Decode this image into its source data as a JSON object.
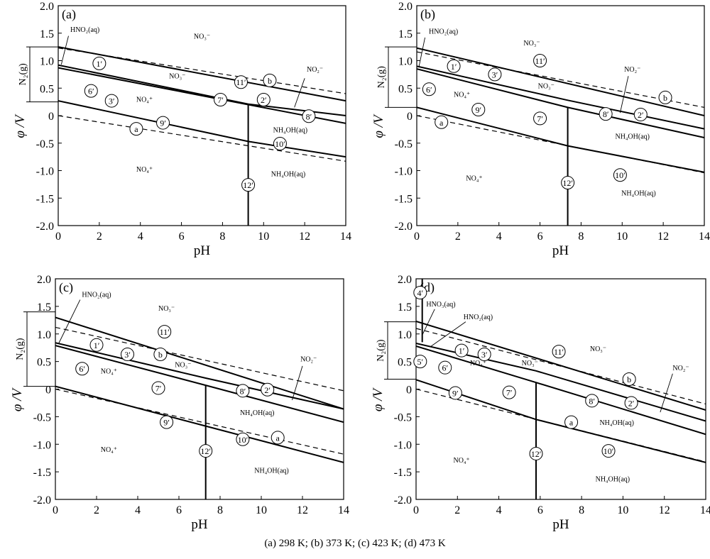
{
  "caption": "(a) 298 K; (b) 373 K; (c) 423 K; (d) 473 K",
  "chart_data": [
    {
      "type": "line",
      "panel_label": "(a)",
      "xlabel": "pH",
      "ylabel": "φ /V",
      "xlim": [
        0,
        14
      ],
      "ylim": [
        -2.0,
        2.0
      ],
      "xticks": [
        "0",
        "2",
        "4",
        "6",
        "8",
        "10",
        "12",
        "14"
      ],
      "yticks": [
        "2.0",
        "1.5",
        "1.0",
        "0.5",
        "0",
        "-0.5",
        "-1.0",
        "-1.5",
        "-2.0"
      ],
      "n2_label": "N₂(g)",
      "n2_bracket": [
        0.25,
        1.25
      ],
      "lines": [
        {
          "style": "dashed",
          "points": [
            [
              0,
              1.23
            ],
            [
              14,
              0.4
            ]
          ]
        },
        {
          "style": "dashed",
          "points": [
            [
              0,
              0.0
            ],
            [
              14,
              -0.83
            ]
          ]
        },
        {
          "style": "solid",
          "points": [
            [
              0,
              1.25
            ],
            [
              14,
              0.27
            ]
          ]
        },
        {
          "style": "solid",
          "points": [
            [
              0,
              0.92
            ],
            [
              9.25,
              0.21
            ],
            [
              14,
              0.0
            ]
          ]
        },
        {
          "style": "solid",
          "points": [
            [
              0,
              0.87
            ],
            [
              9.25,
              0.2
            ],
            [
              14,
              -0.14
            ]
          ]
        },
        {
          "style": "solid",
          "points": [
            [
              0,
              0.27
            ],
            [
              9.25,
              -0.47
            ],
            [
              14,
              -0.75
            ]
          ]
        },
        {
          "style": "solid",
          "points": [
            [
              9.25,
              0.21
            ],
            [
              9.25,
              -2.0
            ]
          ]
        }
      ],
      "markers": [
        {
          "id": "1′",
          "x": 2.0,
          "y": 0.95
        },
        {
          "id": "6′",
          "x": 1.6,
          "y": 0.45
        },
        {
          "id": "3′",
          "x": 2.6,
          "y": 0.27
        },
        {
          "id": "9′",
          "x": 5.1,
          "y": -0.13
        },
        {
          "id": "a",
          "x": 3.8,
          "y": -0.24
        },
        {
          "id": "7′",
          "x": 7.9,
          "y": 0.29
        },
        {
          "id": "11′",
          "x": 8.9,
          "y": 0.61
        },
        {
          "id": "b",
          "x": 10.3,
          "y": 0.64
        },
        {
          "id": "2′",
          "x": 10.0,
          "y": 0.29
        },
        {
          "id": "8′",
          "x": 12.2,
          "y": -0.01
        },
        {
          "id": "10′",
          "x": 10.8,
          "y": -0.51
        },
        {
          "id": "12′",
          "x": 9.25,
          "y": -1.26
        }
      ],
      "regions": [
        {
          "text": "HNO₂(aq)",
          "x": 1.3,
          "y": 1.52
        },
        {
          "text": "NO₃⁻",
          "x": 7.0,
          "y": 1.4
        },
        {
          "text": "NO₃⁻",
          "x": 5.8,
          "y": 0.68
        },
        {
          "text": "NO₂⁻",
          "x": 12.5,
          "y": 0.8
        },
        {
          "text": "NO₄⁺",
          "x": 4.2,
          "y": 0.25
        },
        {
          "text": "NH₄OH(aq)",
          "x": 11.3,
          "y": -0.3
        },
        {
          "text": "NO₄⁺",
          "x": 4.2,
          "y": -1.02
        },
        {
          "text": "NH₄OH(aq)",
          "x": 11.2,
          "y": -1.1
        }
      ],
      "pointers": [
        {
          "x1": 0.5,
          "y1": 1.45,
          "x2": 0.15,
          "y2": 0.93
        },
        {
          "x1": 12.0,
          "y1": 0.68,
          "x2": 11.5,
          "y2": 0.15
        }
      ]
    },
    {
      "type": "line",
      "panel_label": "(b)",
      "xlabel": "pH",
      "ylabel": "φ /V",
      "xlim": [
        0,
        14
      ],
      "ylim": [
        -2.0,
        2.0
      ],
      "xticks": [
        "0",
        "2",
        "4",
        "6",
        "8",
        "10",
        "12",
        "14"
      ],
      "yticks": [
        "2.0",
        "1.5",
        "1.0",
        "0.5",
        "0",
        "-0.5",
        "-1.0",
        "-1.5",
        "-2.0"
      ],
      "n2_label": "N₂(g)",
      "n2_bracket": [
        0.15,
        1.25
      ],
      "lines": [
        {
          "style": "dashed",
          "points": [
            [
              0,
              1.16
            ],
            [
              14,
              0.15
            ]
          ]
        },
        {
          "style": "dashed",
          "points": [
            [
              0,
              0.0
            ],
            [
              14,
              -1.04
            ]
          ]
        },
        {
          "style": "solid",
          "points": [
            [
              0,
              1.23
            ],
            [
              14,
              0.0
            ]
          ]
        },
        {
          "style": "solid",
          "points": [
            [
              0,
              0.9
            ],
            [
              7.35,
              0.28
            ],
            [
              14,
              -0.24
            ]
          ]
        },
        {
          "style": "solid",
          "points": [
            [
              0,
              0.85
            ],
            [
              7.35,
              0.15
            ],
            [
              14,
              -0.4
            ]
          ]
        },
        {
          "style": "solid",
          "points": [
            [
              0,
              0.15
            ],
            [
              7.35,
              -0.55
            ],
            [
              14,
              -1.03
            ]
          ]
        },
        {
          "style": "solid",
          "points": [
            [
              7.35,
              0.15
            ],
            [
              7.35,
              -2.0
            ]
          ]
        }
      ],
      "markers": [
        {
          "id": "1′",
          "x": 1.8,
          "y": 0.9
        },
        {
          "id": "3′",
          "x": 3.8,
          "y": 0.75
        },
        {
          "id": "6′",
          "x": 0.6,
          "y": 0.48
        },
        {
          "id": "11′",
          "x": 6.0,
          "y": 1.0
        },
        {
          "id": "9′",
          "x": 3.0,
          "y": 0.11
        },
        {
          "id": "a",
          "x": 1.2,
          "y": -0.12
        },
        {
          "id": "7′",
          "x": 6.0,
          "y": -0.05
        },
        {
          "id": "8′",
          "x": 9.2,
          "y": 0.03
        },
        {
          "id": "2′",
          "x": 10.9,
          "y": 0.02
        },
        {
          "id": "b",
          "x": 12.1,
          "y": 0.33
        },
        {
          "id": "10′",
          "x": 9.9,
          "y": -1.08
        },
        {
          "id": "12′",
          "x": 7.35,
          "y": -1.22
        }
      ],
      "regions": [
        {
          "text": "HNO₂(aq)",
          "x": 1.3,
          "y": 1.49
        },
        {
          "text": "NO₃⁻",
          "x": 5.6,
          "y": 1.28
        },
        {
          "text": "NO₂⁻",
          "x": 10.5,
          "y": 0.8
        },
        {
          "text": "NO₃⁻",
          "x": 6.3,
          "y": 0.5
        },
        {
          "text": "NO₄⁺",
          "x": 2.2,
          "y": 0.34
        },
        {
          "text": "NH₄OH(aq)",
          "x": 10.5,
          "y": -0.42
        },
        {
          "text": "NO₄⁺",
          "x": 2.8,
          "y": -1.18
        },
        {
          "text": "NH₄OH(aq)",
          "x": 10.8,
          "y": -1.45
        }
      ],
      "pointers": [
        {
          "x1": 0.4,
          "y1": 1.42,
          "x2": 0.1,
          "y2": 0.88
        },
        {
          "x1": 10.3,
          "y1": 0.72,
          "x2": 9.9,
          "y2": 0.05
        }
      ]
    },
    {
      "type": "line",
      "panel_label": "(c)",
      "xlabel": "pH",
      "ylabel": "φ /V",
      "xlim": [
        0,
        14
      ],
      "ylim": [
        -2.0,
        2.0
      ],
      "xticks": [
        "0",
        "2",
        "4",
        "6",
        "8",
        "10",
        "12",
        "14"
      ],
      "yticks": [
        "2.0",
        "1.5",
        "1.0",
        "0.5",
        "0",
        "-0.5",
        "-1.0",
        "-1.5",
        "-2.0"
      ],
      "n2_label": "N₂(g)",
      "n2_bracket": [
        0.05,
        1.4
      ],
      "lines": [
        {
          "style": "dashed",
          "points": [
            [
              0,
              1.12
            ],
            [
              14,
              -0.03
            ]
          ]
        },
        {
          "style": "dashed",
          "points": [
            [
              0,
              0.0
            ],
            [
              14,
              -1.18
            ]
          ]
        },
        {
          "style": "solid",
          "points": [
            [
              0,
              1.3
            ],
            [
              14,
              -0.36
            ]
          ]
        },
        {
          "style": "solid",
          "points": [
            [
              0,
              0.84
            ],
            [
              7.3,
              0.2
            ],
            [
              14,
              -0.36
            ]
          ]
        },
        {
          "style": "solid",
          "points": [
            [
              0,
              0.79
            ],
            [
              7.3,
              0.07
            ],
            [
              14,
              -0.6
            ]
          ]
        },
        {
          "style": "solid",
          "points": [
            [
              0,
              0.05
            ],
            [
              7.3,
              -0.67
            ],
            [
              14,
              -1.33
            ]
          ]
        },
        {
          "style": "solid",
          "points": [
            [
              7.3,
              0.07
            ],
            [
              7.3,
              -2.0
            ]
          ]
        }
      ],
      "markers": [
        {
          "id": "1′",
          "x": 2.0,
          "y": 0.8
        },
        {
          "id": "3′",
          "x": 3.5,
          "y": 0.63
        },
        {
          "id": "6′",
          "x": 1.3,
          "y": 0.37
        },
        {
          "id": "11′",
          "x": 5.3,
          "y": 1.04
        },
        {
          "id": "b",
          "x": 5.1,
          "y": 0.63
        },
        {
          "id": "7′",
          "x": 5.0,
          "y": 0.02
        },
        {
          "id": "9′",
          "x": 5.4,
          "y": -0.6
        },
        {
          "id": "8′",
          "x": 9.1,
          "y": -0.03
        },
        {
          "id": "2′",
          "x": 10.3,
          "y": -0.01
        },
        {
          "id": "a",
          "x": 10.8,
          "y": -0.88
        },
        {
          "id": "10′",
          "x": 9.1,
          "y": -0.91
        },
        {
          "id": "12′",
          "x": 7.3,
          "y": -1.12
        }
      ],
      "regions": [
        {
          "text": "HNO₂(aq)",
          "x": 2.0,
          "y": 1.67
        },
        {
          "text": "NO₃⁻",
          "x": 5.4,
          "y": 1.42
        },
        {
          "text": "NO₂⁻",
          "x": 12.3,
          "y": 0.5
        },
        {
          "text": "NO₃⁻",
          "x": 6.2,
          "y": 0.4
        },
        {
          "text": "NO₄⁺",
          "x": 2.6,
          "y": 0.28
        },
        {
          "text": "NH₄OH(aq)",
          "x": 9.8,
          "y": -0.47
        },
        {
          "text": "NO₄⁺",
          "x": 2.6,
          "y": -1.14
        },
        {
          "text": "NH₄OH(aq)",
          "x": 10.5,
          "y": -1.52
        }
      ],
      "pointers": [
        {
          "x1": 1.2,
          "y1": 1.62,
          "x2": 0.15,
          "y2": 0.82
        },
        {
          "x1": 12.0,
          "y1": 0.42,
          "x2": 11.5,
          "y2": -0.2
        }
      ]
    },
    {
      "type": "line",
      "panel_label": "(d)",
      "xlabel": "pH",
      "ylabel": "φ /V",
      "xlim": [
        0,
        14
      ],
      "ylim": [
        -2.0,
        2.0
      ],
      "xticks": [
        "0",
        "2",
        "4",
        "6",
        "8",
        "10",
        "12",
        "14"
      ],
      "yticks": [
        "2.0",
        "1.5",
        "1.0",
        "0.5",
        "0",
        "-0.5",
        "-1.0",
        "-1.5",
        "-2.0"
      ],
      "n2_label": "N₂(g)",
      "n2_bracket": [
        0.18,
        1.22
      ],
      "lines": [
        {
          "style": "dashed",
          "points": [
            [
              0,
              1.1
            ],
            [
              14,
              -0.27
            ]
          ]
        },
        {
          "style": "dashed",
          "points": [
            [
              0,
              0.0
            ],
            [
              14,
              -1.32
            ]
          ]
        },
        {
          "style": "solid",
          "points": [
            [
              0,
              1.23
            ],
            [
              14,
              -0.38
            ]
          ]
        },
        {
          "style": "solid",
          "points": [
            [
              0,
              0.83
            ],
            [
              5.8,
              0.33
            ],
            [
              14,
              -0.58
            ]
          ]
        },
        {
          "style": "solid",
          "points": [
            [
              0,
              0.78
            ],
            [
              5.8,
              0.12
            ],
            [
              14,
              -0.82
            ]
          ]
        },
        {
          "style": "solid",
          "points": [
            [
              0,
              0.17
            ],
            [
              5.8,
              -0.55
            ],
            [
              14,
              -1.33
            ]
          ]
        },
        {
          "style": "solid",
          "points": [
            [
              5.8,
              0.12
            ],
            [
              5.8,
              -2.0
            ]
          ]
        },
        {
          "style": "solid",
          "points": [
            [
              0.3,
              2.0
            ],
            [
              0.3,
              0.85
            ]
          ]
        }
      ],
      "markers": [
        {
          "id": "4′",
          "x": 0.2,
          "y": 1.75
        },
        {
          "id": "5′",
          "x": 0.2,
          "y": 0.5
        },
        {
          "id": "1′",
          "x": 2.2,
          "y": 0.7
        },
        {
          "id": "3′",
          "x": 3.3,
          "y": 0.63
        },
        {
          "id": "6′",
          "x": 1.4,
          "y": 0.39
        },
        {
          "id": "7′",
          "x": 4.5,
          "y": -0.06
        },
        {
          "id": "9′",
          "x": 1.9,
          "y": -0.07
        },
        {
          "id": "11′",
          "x": 6.9,
          "y": 0.68
        },
        {
          "id": "b",
          "x": 10.3,
          "y": 0.18
        },
        {
          "id": "8′",
          "x": 8.5,
          "y": -0.21
        },
        {
          "id": "2′",
          "x": 10.4,
          "y": -0.25
        },
        {
          "id": "a",
          "x": 7.5,
          "y": -0.6
        },
        {
          "id": "10′",
          "x": 9.3,
          "y": -1.12
        },
        {
          "id": "12′",
          "x": 5.8,
          "y": -1.17
        }
      ],
      "regions": [
        {
          "text": "HNO₃(aq)",
          "x": 1.2,
          "y": 1.5
        },
        {
          "text": "HNO₂(aq)",
          "x": 3.0,
          "y": 1.27
        },
        {
          "text": "NO₃⁻",
          "x": 8.8,
          "y": 0.69
        },
        {
          "text": "NO₂⁻",
          "x": 12.8,
          "y": 0.34
        },
        {
          "text": "NO₃⁻",
          "x": 5.5,
          "y": 0.43
        },
        {
          "text": "NO₄⁺",
          "x": 3.0,
          "y": 0.43
        },
        {
          "text": "NH₄OH(aq)",
          "x": 9.7,
          "y": -0.65
        },
        {
          "text": "NO₄⁺",
          "x": 2.2,
          "y": -1.33
        },
        {
          "text": "NH₄OH(aq)",
          "x": 9.5,
          "y": -1.67
        }
      ],
      "pointers": [
        {
          "x1": 0.9,
          "y1": 1.45,
          "x2": 0.3,
          "y2": 0.98
        },
        {
          "x1": 2.4,
          "y1": 1.22,
          "x2": 0.7,
          "y2": 0.77
        },
        {
          "x1": 12.4,
          "y1": 0.28,
          "x2": 11.8,
          "y2": -0.42
        }
      ]
    }
  ]
}
